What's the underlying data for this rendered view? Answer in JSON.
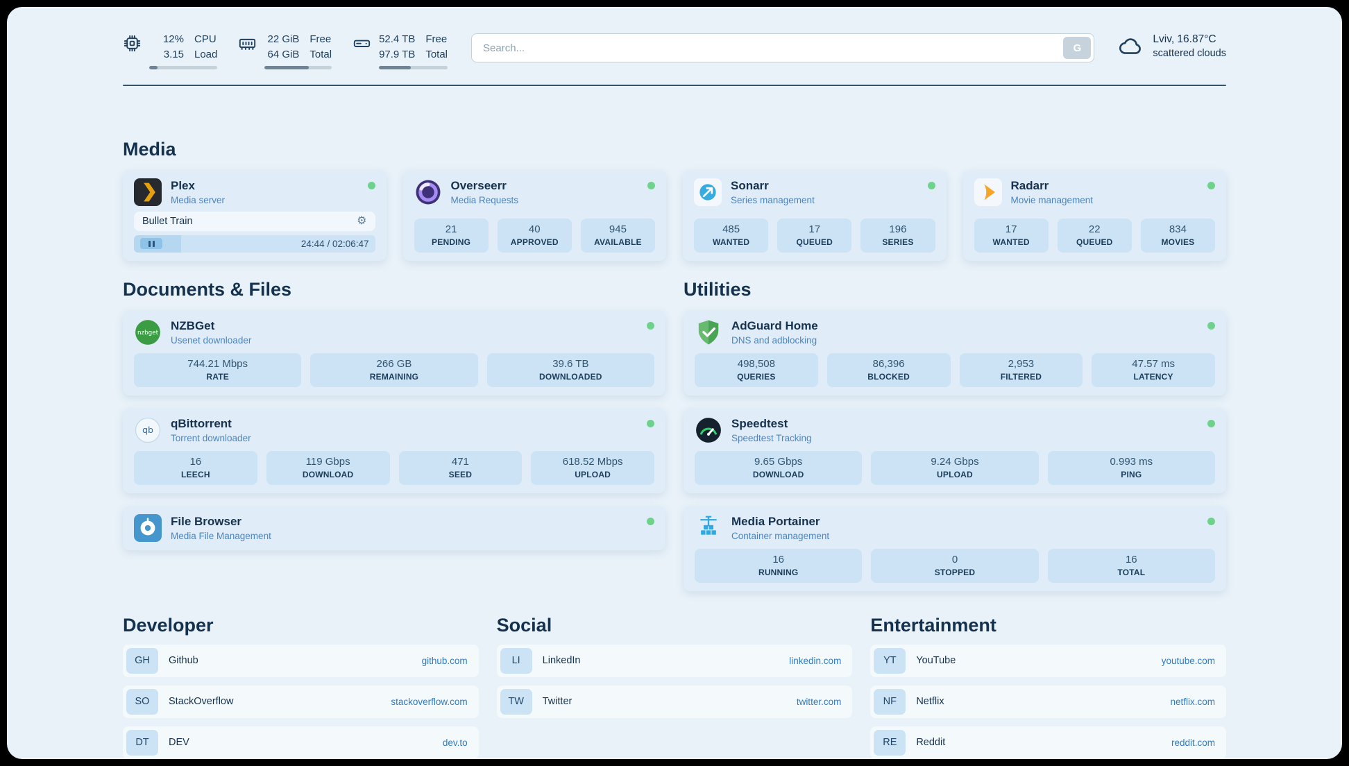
{
  "colors": {
    "background": "#e9f2f9",
    "card": "#e0edf8",
    "stat_box": "#cbe3f5",
    "text_primary": "#16324e",
    "text_subtitle": "#4c84bd",
    "link": "#2e7cc2",
    "status_online": "#6fd28c"
  },
  "icons": {
    "gear": "⚙",
    "pause": "⏸",
    "search_provider": "G"
  },
  "header": {
    "metrics": [
      {
        "id": "cpu",
        "values": [
          "12%",
          "3.15"
        ],
        "labels": [
          "CPU",
          "Load"
        ],
        "bar_percent": 12
      },
      {
        "id": "ram",
        "values": [
          "22 GiB",
          "64 GiB"
        ],
        "labels": [
          "Free",
          "Total"
        ],
        "bar_percent": 66
      },
      {
        "id": "disk",
        "values": [
          "52.4 TB",
          "97.9 TB"
        ],
        "labels": [
          "Free",
          "Total"
        ],
        "bar_percent": 46
      }
    ],
    "search": {
      "placeholder": "Search...",
      "button_label": "G"
    },
    "weather": {
      "location": "Lviv, 16.87°C",
      "condition": "scattered clouds"
    }
  },
  "media": {
    "title": "Media",
    "cards": [
      {
        "title": "Plex",
        "subtitle": "Media server",
        "status": "online",
        "player": {
          "track": "Bullet Train",
          "time": "24:44 / 02:06:47",
          "progress_percent": 19.5
        }
      },
      {
        "title": "Overseerr",
        "subtitle": "Media Requests",
        "status": "online",
        "stats": [
          {
            "value": "21",
            "label": "PENDING"
          },
          {
            "value": "40",
            "label": "APPROVED"
          },
          {
            "value": "945",
            "label": "AVAILABLE"
          }
        ]
      },
      {
        "title": "Sonarr",
        "subtitle": "Series management",
        "status": "online",
        "stats": [
          {
            "value": "485",
            "label": "WANTED"
          },
          {
            "value": "17",
            "label": "QUEUED"
          },
          {
            "value": "196",
            "label": "SERIES"
          }
        ]
      },
      {
        "title": "Radarr",
        "subtitle": "Movie management",
        "status": "online",
        "stats": [
          {
            "value": "17",
            "label": "WANTED"
          },
          {
            "value": "22",
            "label": "QUEUED"
          },
          {
            "value": "834",
            "label": "MOVIES"
          }
        ]
      }
    ]
  },
  "documents": {
    "title": "Documents & Files",
    "cards": [
      {
        "title": "NZBGet",
        "subtitle": "Usenet downloader",
        "status": "online",
        "stats": [
          {
            "value": "744.21 Mbps",
            "label": "RATE"
          },
          {
            "value": "266 GB",
            "label": "REMAINING"
          },
          {
            "value": "39.6 TB",
            "label": "DOWNLOADED"
          }
        ]
      },
      {
        "title": "qBittorrent",
        "subtitle": "Torrent downloader",
        "status": "online",
        "stats": [
          {
            "value": "16",
            "label": "LEECH"
          },
          {
            "value": "119 Gbps",
            "label": "DOWNLOAD"
          },
          {
            "value": "471",
            "label": "SEED"
          },
          {
            "value": "618.52 Mbps",
            "label": "UPLOAD"
          }
        ]
      },
      {
        "title": "File Browser",
        "subtitle": "Media File Management",
        "status": "online"
      }
    ]
  },
  "utilities": {
    "title": "Utilities",
    "cards": [
      {
        "title": "AdGuard Home",
        "subtitle": "DNS and adblocking",
        "status": "online",
        "stats": [
          {
            "value": "498,508",
            "label": "QUERIES"
          },
          {
            "value": "86,396",
            "label": "BLOCKED"
          },
          {
            "value": "2,953",
            "label": "FILTERED"
          },
          {
            "value": "47.57 ms",
            "label": "LATENCY"
          }
        ]
      },
      {
        "title": "Speedtest",
        "subtitle": "Speedtest Tracking",
        "status": "online",
        "stats": [
          {
            "value": "9.65 Gbps",
            "label": "DOWNLOAD"
          },
          {
            "value": "9.24 Gbps",
            "label": "UPLOAD"
          },
          {
            "value": "0.993 ms",
            "label": "PING"
          }
        ]
      },
      {
        "title": "Media Portainer",
        "subtitle": "Container management",
        "status": "online",
        "stats": [
          {
            "value": "16",
            "label": "RUNNING"
          },
          {
            "value": "0",
            "label": "STOPPED"
          },
          {
            "value": "16",
            "label": "TOTAL"
          }
        ]
      }
    ]
  },
  "bookmarks": {
    "groups": [
      {
        "title": "Developer",
        "items": [
          {
            "abbr": "GH",
            "name": "Github",
            "url": "github.com"
          },
          {
            "abbr": "SO",
            "name": "StackOverflow",
            "url": "stackoverflow.com"
          },
          {
            "abbr": "DT",
            "name": "DEV",
            "url": "dev.to"
          }
        ]
      },
      {
        "title": "Social",
        "items": [
          {
            "abbr": "LI",
            "name": "LinkedIn",
            "url": "linkedin.com"
          },
          {
            "abbr": "TW",
            "name": "Twitter",
            "url": "twitter.com"
          }
        ]
      },
      {
        "title": "Entertainment",
        "items": [
          {
            "abbr": "YT",
            "name": "YouTube",
            "url": "youtube.com"
          },
          {
            "abbr": "NF",
            "name": "Netflix",
            "url": "netflix.com"
          },
          {
            "abbr": "RE",
            "name": "Reddit",
            "url": "reddit.com"
          }
        ]
      }
    ]
  }
}
